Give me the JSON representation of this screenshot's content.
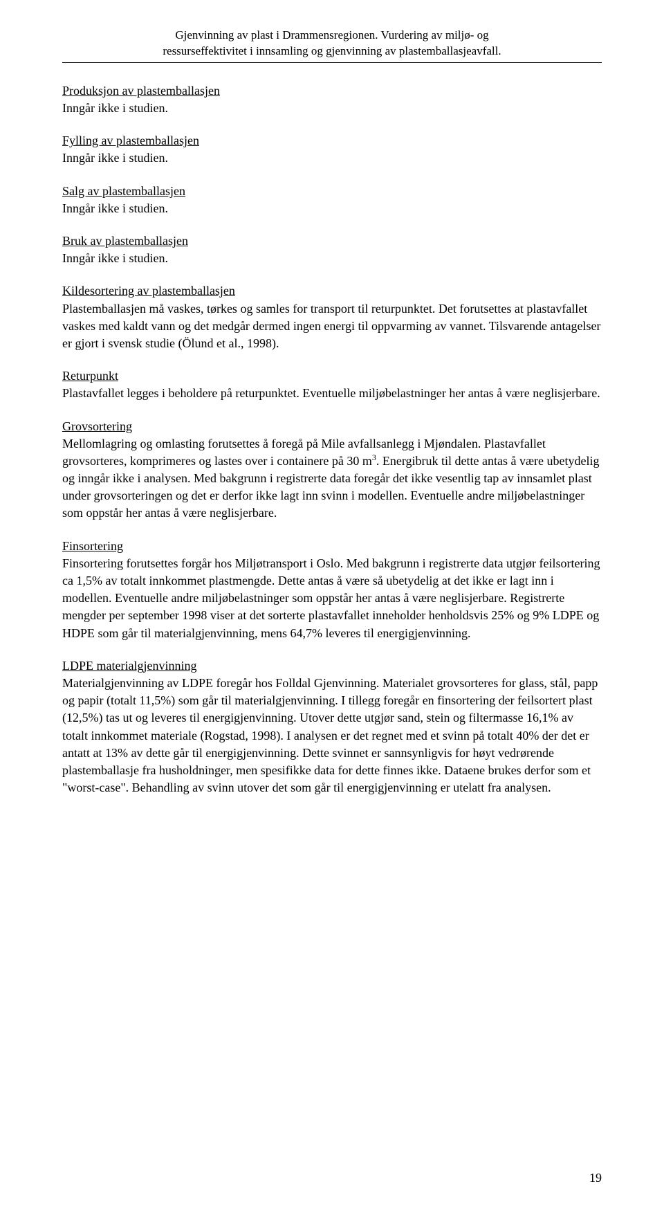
{
  "header": {
    "line1": "Gjenvinning av plast i Drammensregionen. Vurdering av miljø- og",
    "line2": "ressurseffektivitet i innsamling og gjenvinning av plastemballasjeavfall."
  },
  "sections": {
    "produksjon": {
      "title": "Produksjon av plastemballasjen",
      "body": "Inngår ikke i studien."
    },
    "fylling": {
      "title": "Fylling av plastemballasjen",
      "body": "Inngår ikke i studien."
    },
    "salg": {
      "title": "Salg av plastemballasjen",
      "body": "Inngår ikke i studien."
    },
    "bruk": {
      "title": "Bruk av plastemballasjen",
      "body": "Inngår ikke i studien."
    },
    "kildesortering": {
      "title": "Kildesortering av plastemballasjen",
      "body": "Plastemballasjen må vaskes, tørkes og samles for transport til returpunktet. Det forutsettes at plastavfallet vaskes med kaldt vann og det medgår dermed ingen energi til oppvarming av vannet. Tilsvarende antagelser er gjort i svensk studie (Ölund et al., 1998)."
    },
    "returpunkt": {
      "title": "Returpunkt",
      "body": "Plastavfallet legges i beholdere på returpunktet. Eventuelle miljøbelastninger her antas å være neglisjerbare."
    },
    "grovsortering": {
      "title": "Grovsortering",
      "body_pre": "Mellomlagring og omlasting forutsettes å foregå på Mile avfallsanlegg i Mjøndalen. Plastavfallet grovsorteres, komprimeres og lastes over i containere på 30 m",
      "sup": "3",
      "body_post": ". Energibruk til dette antas å være ubetydelig og inngår ikke i analysen. Med bakgrunn i registrerte data foregår det ikke vesentlig tap av innsamlet plast under grovsorteringen og det er derfor ikke lagt inn svinn i modellen. Eventuelle andre miljøbelastninger som oppstår her antas å være neglisjerbare."
    },
    "finsortering": {
      "title": "Finsortering",
      "body": "Finsortering forutsettes forgår hos Miljøtransport i Oslo. Med bakgrunn i registrerte data utgjør feilsortering ca 1,5% av totalt innkommet plastmengde. Dette antas å være så ubetydelig at det ikke er lagt inn i modellen. Eventuelle andre miljøbelastninger som oppstår her antas å være neglisjerbare. Registrerte mengder per september 1998 viser at det sorterte plastavfallet inneholder henholdsvis 25% og 9% LDPE og HDPE som går til materialgjenvinning, mens 64,7% leveres til energigjenvinning."
    },
    "ldpe": {
      "title": "LDPE materialgjenvinning",
      "body": "Materialgjenvinning av LDPE foregår hos Folldal Gjenvinning. Materialet grovsorteres for glass, stål, papp og papir (totalt 11,5%) som går til materialgjenvinning. I tillegg foregår en finsortering der feilsortert plast (12,5%) tas ut og leveres til energigjenvinning. Utover dette utgjør sand, stein og filtermasse 16,1% av totalt innkommet materiale (Rogstad, 1998). I analysen er det regnet med et svinn på totalt 40% der det er antatt at 13% av dette går til energigjenvinning. Dette svinnet er sannsynligvis for høyt vedrørende plastemballasje fra husholdninger, men spesifikke data for dette finnes ikke. Dataene brukes derfor som et \"worst-case\". Behandling av svinn utover det som går til energigjenvinning er utelatt fra analysen."
    }
  },
  "pageNumber": "19"
}
